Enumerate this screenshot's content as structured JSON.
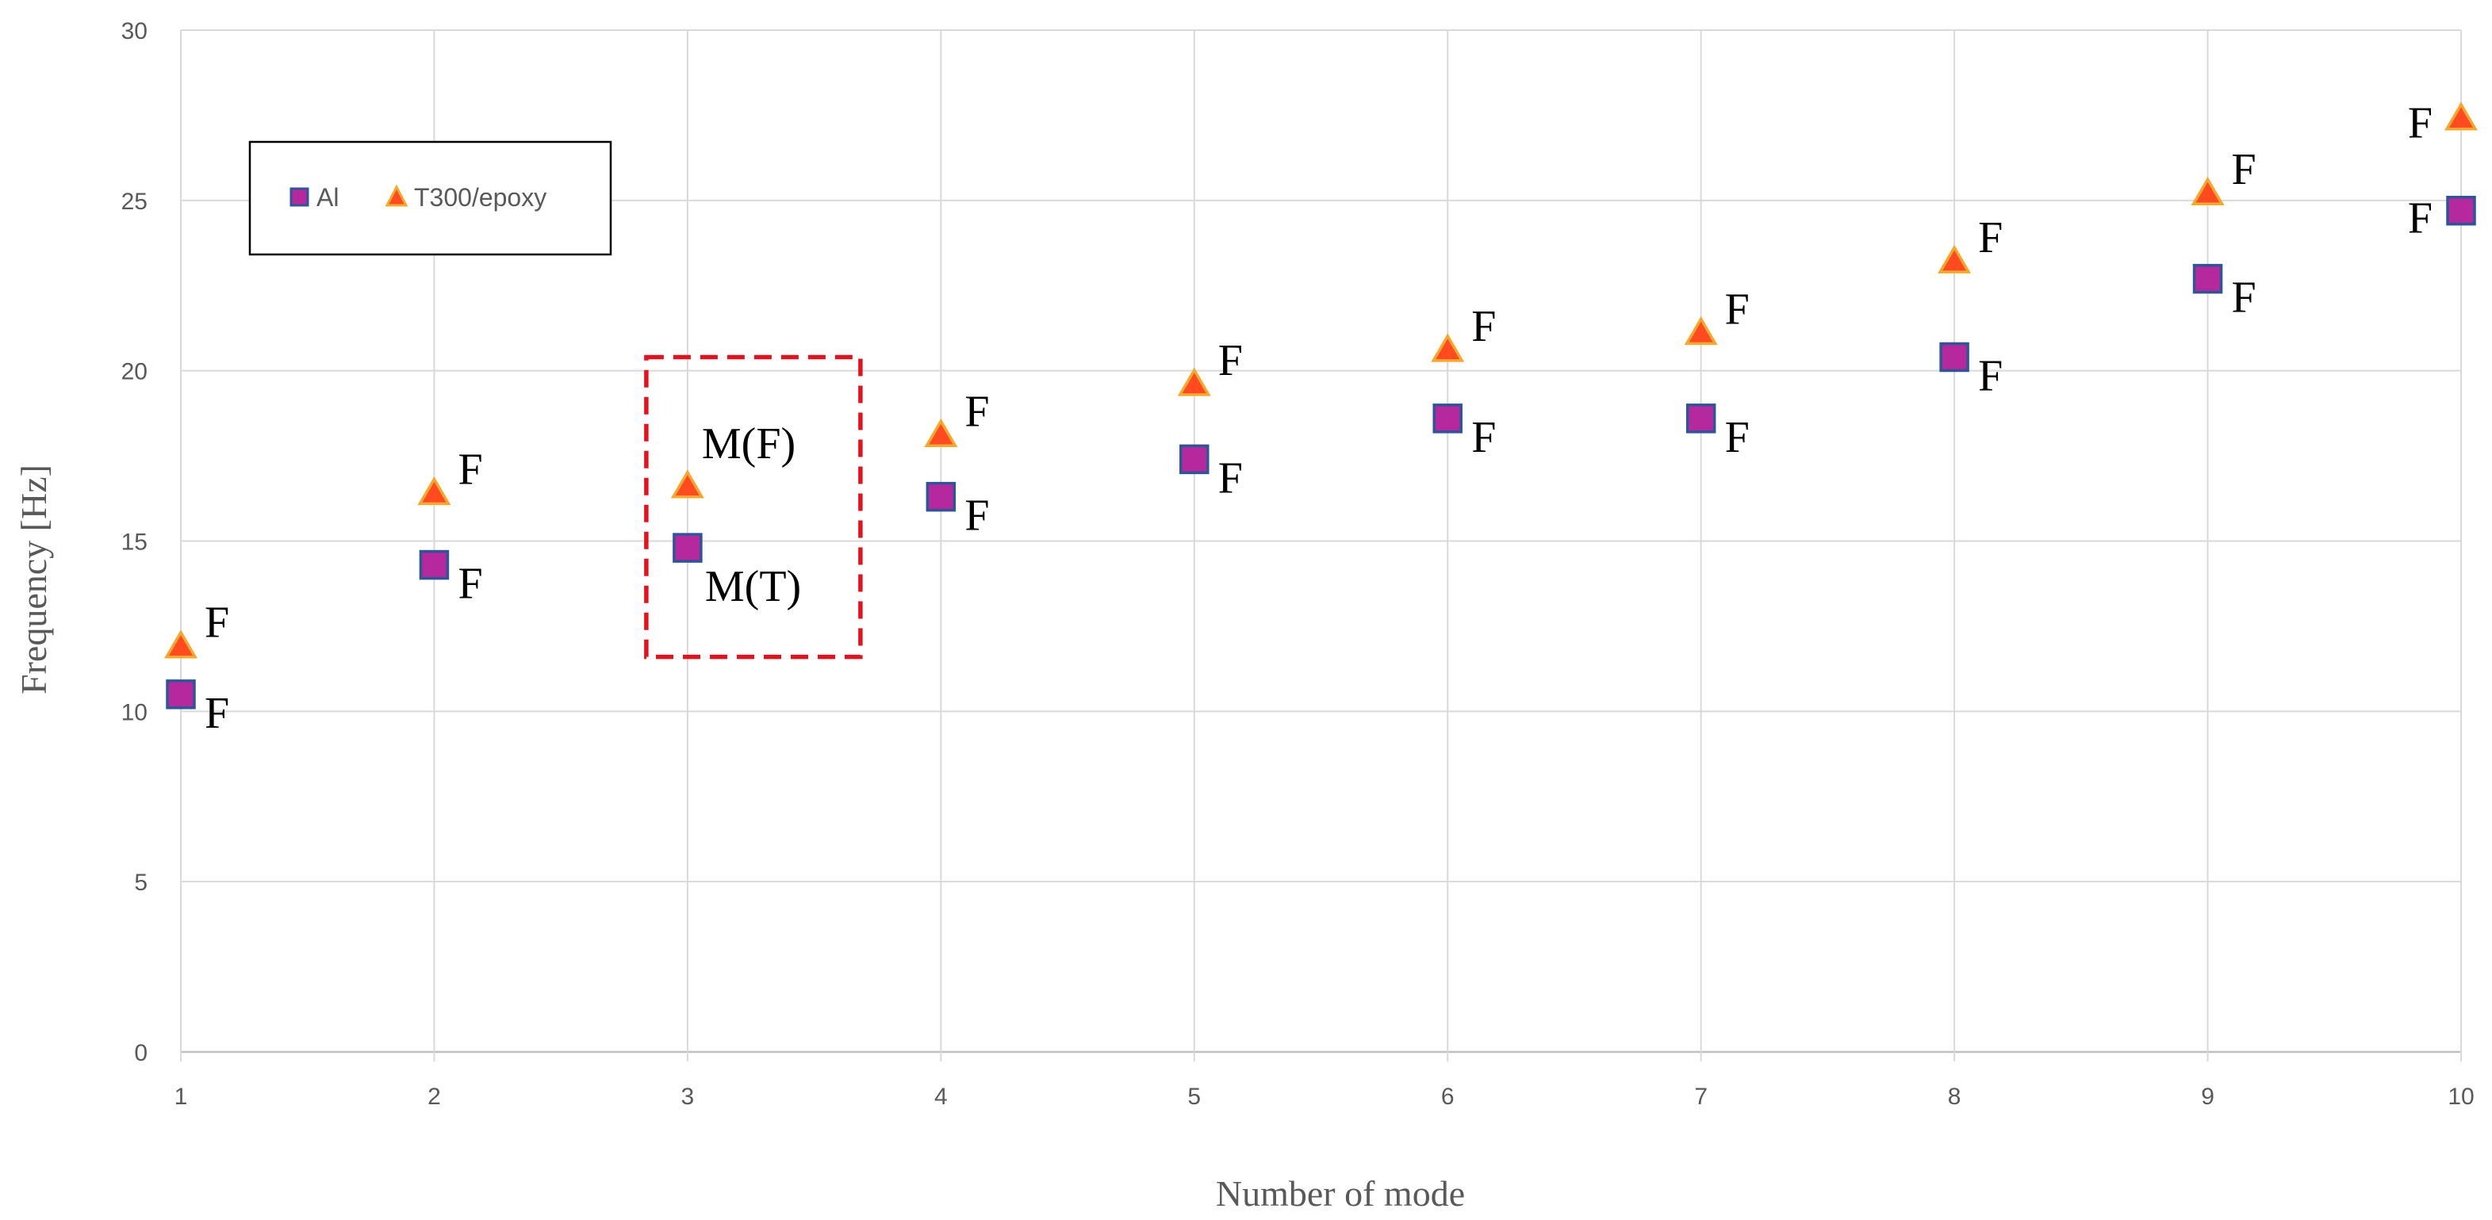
{
  "chart_data": {
    "type": "scatter",
    "title": "",
    "xlabel": "Number of mode",
    "ylabel": "Frequency [Hz]",
    "xlim": [
      1,
      10
    ],
    "ylim": [
      0,
      30
    ],
    "x_ticks": [
      1,
      2,
      3,
      4,
      5,
      6,
      7,
      8,
      9,
      10
    ],
    "y_ticks": [
      0,
      5,
      10,
      15,
      20,
      25,
      30
    ],
    "grid": true,
    "legend_position": "top-left",
    "x": [
      1,
      2,
      3,
      4,
      5,
      6,
      7,
      8,
      9,
      10
    ],
    "series": [
      {
        "name": "Al",
        "marker": "square",
        "fill": "#B5289E",
        "stroke": "#2F5597",
        "values": [
          10.5,
          14.3,
          14.8,
          16.3,
          17.4,
          18.6,
          18.6,
          20.4,
          22.7,
          24.7
        ],
        "labels": [
          "F",
          "F",
          "M(T)",
          "F",
          "F",
          "F",
          "F",
          "F",
          "F",
          "F"
        ]
      },
      {
        "name": "T300/epoxy",
        "marker": "triangle",
        "fill": "#FF4B1F",
        "stroke": "#F4A830",
        "values": [
          11.9,
          16.4,
          16.6,
          18.1,
          19.6,
          20.6,
          21.1,
          23.2,
          25.2,
          27.4
        ],
        "labels": [
          "F",
          "F",
          "M(F)",
          "F",
          "F",
          "F",
          "F",
          "F",
          "F",
          "F"
        ]
      }
    ],
    "highlight_box": {
      "mode": 3,
      "color": "#E0141E"
    },
    "colors": {
      "grid": "#D9D9D9",
      "axis": "#BFBFBF",
      "legend_border": "#000000"
    }
  }
}
